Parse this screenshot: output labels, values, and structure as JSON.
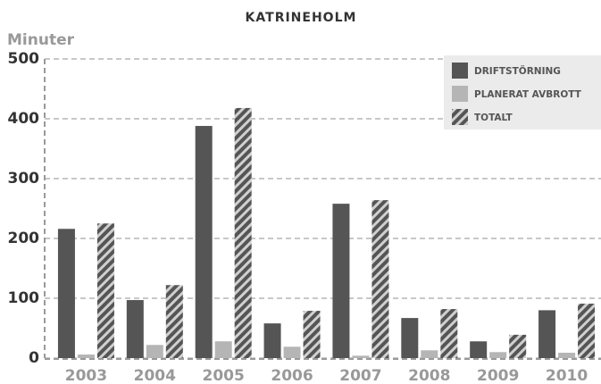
{
  "chart_data": {
    "type": "bar",
    "title": "KATRINEHOLM",
    "y_label": "Minuter",
    "categories": [
      "2003",
      "2004",
      "2005",
      "2006",
      "2007",
      "2008",
      "2009",
      "2010"
    ],
    "series": [
      {
        "name": "DRIFTSTÖRNING",
        "color": "#555555",
        "values": [
          216,
          97,
          388,
          58,
          258,
          67,
          28,
          80
        ]
      },
      {
        "name": "PLANERAT AVBROTT",
        "color": "#b5b5b5",
        "values": [
          6,
          22,
          28,
          19,
          4,
          13,
          10,
          9
        ]
      },
      {
        "name": "TOTALT",
        "color": "#555555",
        "pattern": "hatch",
        "values": [
          225,
          122,
          418,
          79,
          264,
          82,
          39,
          91
        ]
      }
    ],
    "ylim": [
      0,
      500
    ],
    "yticks": [
      0,
      100,
      200,
      300,
      400,
      500
    ],
    "grid": true,
    "legend": "upper right"
  }
}
